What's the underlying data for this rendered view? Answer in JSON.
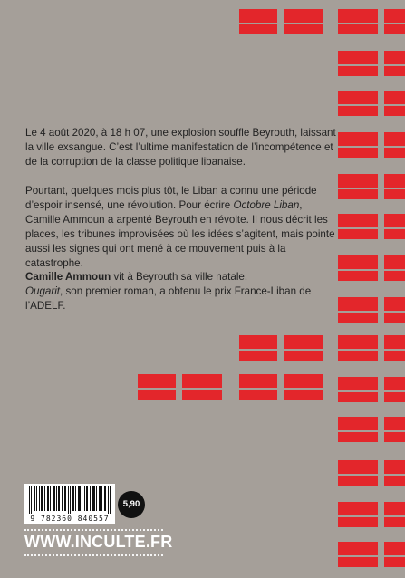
{
  "back_cover": {
    "paragraph_1": "Le 4 août 2020, à 18 h 07, une explosion souffle Beyrouth, laissant la ville exsangue. C’est l’ultime manifestation de l’incompétence et de la corruption de la classe politique libanaise.",
    "paragraph_2": {
      "before_title": "Pourtant, quelques mois plus tôt, le Liban a connu une période d’espoir insensé, une révolution. Pour écrire ",
      "book_title": "Octobre Liban",
      "after_title": ", Camille Ammoun a arpenté Beyrouth en révolte. Il nous décrit les places, les tribunes improvisées où les idées s’agitent, mais pointe aussi les signes qui ont mené à ce mouvement puis à la catastrophe."
    },
    "author_bio": {
      "author_name": "Camille Ammoun",
      "line_1_rest": " vit à Beyrouth sa ville natale.",
      "first_novel": "Ougarit",
      "line_2_rest": ", son premier roman, a obtenu le prix France-Liban de l’ADELF."
    },
    "isbn_digits": "9 782360 840557",
    "price": "5,90",
    "publisher_url": "WWW.INCULTE.FR",
    "accent_color": "#e3262b",
    "background_color": "#a59f99"
  }
}
